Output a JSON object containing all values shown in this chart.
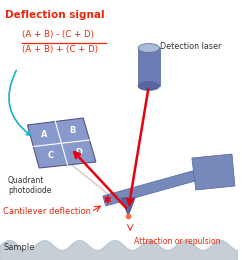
{
  "bg_color": "#ffffff",
  "title": "Deflection signal",
  "formula_num": "(A + B) - (C + D)",
  "formula_den": "(A + B) + (C + D)",
  "label_detection_laser": "Detection laser",
  "label_quadrant": "Quadrant\nphotodiode",
  "label_cantilever": "Cantilever deflection",
  "label_attraction": "Attraction or repulsion",
  "label_sample": "Sample",
  "red_color": "#e8000d",
  "text_red": "#e8280a",
  "blue_color": "#6b7cb5",
  "blue_dark": "#5566a0",
  "cyan_color": "#1ab0c8",
  "sample_color": "#c8d0d8",
  "figsize": [
    2.42,
    2.6
  ],
  "dpi": 100
}
